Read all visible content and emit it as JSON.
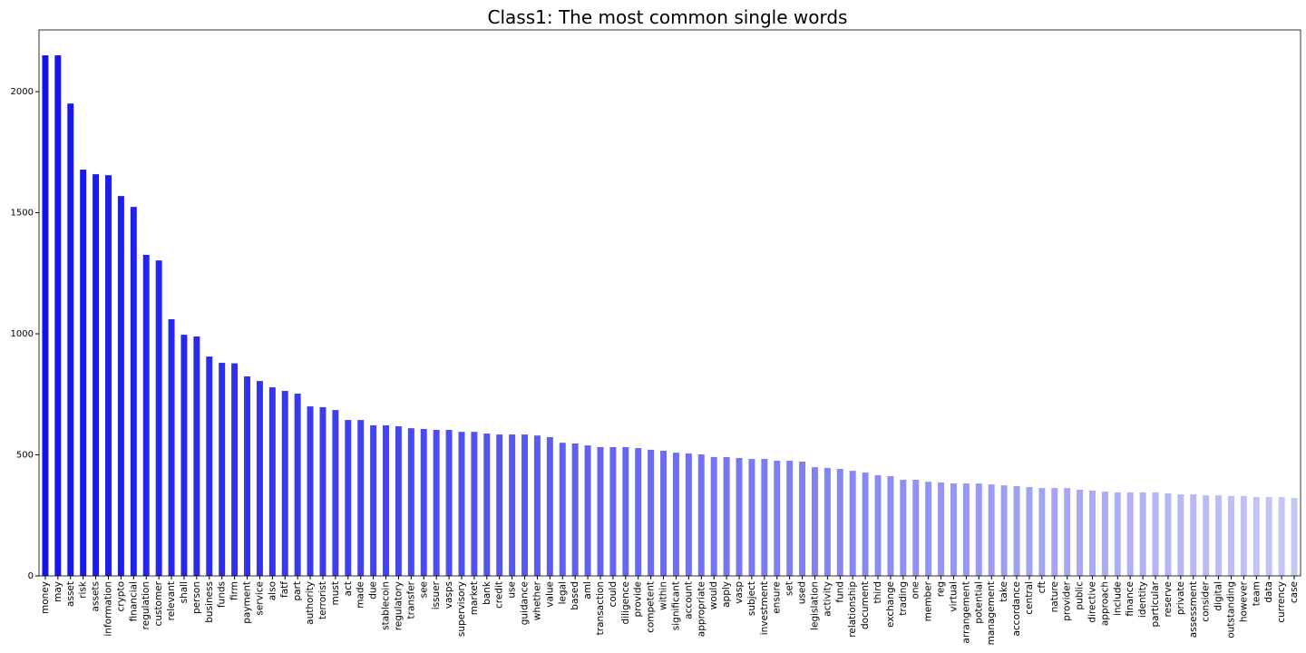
{
  "chart_data": {
    "type": "bar",
    "title": "Class1: The most common single words",
    "categories": [
      "money",
      "may",
      "asset",
      "risk",
      "assets",
      "information",
      "crypto",
      "financial",
      "regulation",
      "customer",
      "relevant",
      "shall",
      "person",
      "business",
      "funds",
      "firm",
      "payment",
      "service",
      "also",
      "fatf",
      "part",
      "authority",
      "terrorist",
      "must",
      "act",
      "made",
      "due",
      "stablecoin",
      "regulatory",
      "transfer",
      "see",
      "issuer",
      "vasps",
      "supervisory",
      "market",
      "bank",
      "credit",
      "use",
      "guidance",
      "whether",
      "value",
      "legal",
      "based",
      "aml",
      "transaction",
      "could",
      "diligence",
      "provide",
      "competent",
      "within",
      "significant",
      "account",
      "appropriate",
      "would",
      "apply",
      "vasp",
      "subject",
      "investment",
      "ensure",
      "set",
      "used",
      "legislation",
      "activity",
      "fund",
      "relationship",
      "document",
      "third",
      "exchange",
      "trading",
      "one",
      "member",
      "reg",
      "virtual",
      "arrangement",
      "potential",
      "management",
      "take",
      "accordance",
      "central",
      "cft",
      "nature",
      "provider",
      "public",
      "directive",
      "approach",
      "include",
      "finance",
      "identity",
      "particular",
      "reserve",
      "private",
      "assessment",
      "consider",
      "digital",
      "outstanding",
      "however",
      "team",
      "data",
      "currency",
      "case"
    ],
    "values": [
      2150,
      2150,
      1951,
      1678,
      1659,
      1655,
      1569,
      1524,
      1326,
      1303,
      1060,
      996,
      989,
      906,
      880,
      878,
      824,
      805,
      779,
      764,
      753,
      700,
      697,
      685,
      644,
      644,
      622,
      622,
      618,
      610,
      607,
      603,
      603,
      595,
      595,
      588,
      584,
      584,
      584,
      580,
      573,
      550,
      547,
      539,
      532,
      532,
      532,
      528,
      521,
      517,
      509,
      506,
      502,
      491,
      491,
      487,
      483,
      483,
      476,
      476,
      472,
      449,
      446,
      442,
      434,
      427,
      416,
      412,
      397,
      397,
      389,
      386,
      382,
      382,
      382,
      378,
      374,
      371,
      367,
      363,
      363,
      363,
      356,
      352,
      348,
      345,
      345,
      345,
      345,
      341,
      337,
      337,
      333,
      333,
      330,
      330,
      326,
      326,
      326,
      322
    ],
    "color": [
      "#1414ec",
      "#c6c8f4"
    ],
    "ylim": [
      0,
      2255
    ],
    "yticks": [
      0,
      500,
      1000,
      1500,
      2000
    ],
    "grid": false
  }
}
